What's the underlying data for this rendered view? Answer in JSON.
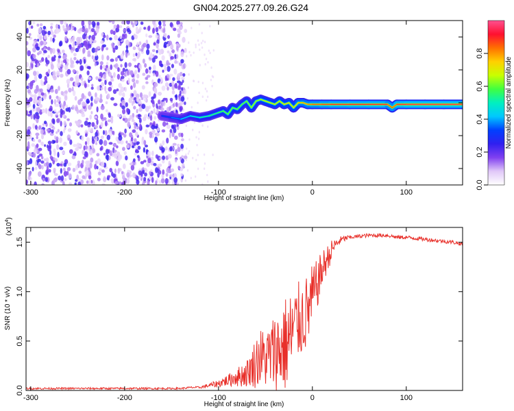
{
  "title": "GN04.2025.277.09.26.G24",
  "chart_data": [
    {
      "type": "heatmap",
      "xlabel": "Height of straight line (km)",
      "ylabel": "Frequency (Hz)",
      "xlim": [
        -305,
        160
      ],
      "ylim": [
        -50,
        50
      ],
      "xticks": [
        -300,
        -200,
        -100,
        0,
        100
      ],
      "yticks": [
        -40,
        -20,
        0,
        20,
        40
      ],
      "colorbar": {
        "label": "Normalized spectral amplitude",
        "range": [
          0,
          1
        ],
        "ticks": [
          0.0,
          0.2,
          0.4,
          0.6,
          0.8
        ],
        "colors": [
          "#ffffff",
          "#e0c8f8",
          "#8040f0",
          "#3020f0",
          "#0040ff",
          "#00c8ff",
          "#00f0c0",
          "#40ff40",
          "#c8ff00",
          "#ffd000",
          "#ff7000",
          "#ff1030",
          "#ff5090"
        ]
      },
      "ridge": {
        "x": [
          -160,
          -150,
          -140,
          -130,
          -120,
          -110,
          -100,
          -95,
          -90,
          -85,
          -80,
          -75,
          -70,
          -65,
          -60,
          -55,
          -50,
          -45,
          -40,
          -35,
          -30,
          -25,
          -20,
          -15,
          -10,
          -5,
          0,
          10,
          20,
          40,
          60,
          80,
          85,
          90,
          100,
          120,
          140,
          160
        ],
        "freq": [
          -8,
          -9,
          -10,
          -8,
          -9,
          -8,
          -6,
          -5,
          -7,
          -3,
          -4,
          -1,
          1,
          -3,
          1,
          2,
          1,
          0,
          -1,
          1,
          -1,
          0,
          -3,
          0,
          0,
          -1,
          -1,
          -1,
          -1,
          -1,
          -1,
          -1,
          -3,
          -1,
          -1,
          -1,
          -1,
          -1
        ],
        "amplitude": [
          0.3,
          0.35,
          0.4,
          0.45,
          0.5,
          0.55,
          0.55,
          0.6,
          0.6,
          0.62,
          0.6,
          0.62,
          0.6,
          0.65,
          0.65,
          0.65,
          0.7,
          0.7,
          0.7,
          0.72,
          0.72,
          0.75,
          0.7,
          0.78,
          0.8,
          0.82,
          0.85,
          0.88,
          0.9,
          0.92,
          0.92,
          0.93,
          0.8,
          0.92,
          0.95,
          0.95,
          0.95,
          0.95
        ]
      },
      "noise_region_x": [
        -305,
        -135
      ],
      "colorbar_ticks_fmt": 1
    },
    {
      "type": "line",
      "xlabel": "Height of straight line (km)",
      "ylabel": "SNR (10 * v/v)",
      "scale_label": "(x10",
      "scale_exp": "4",
      "scale_close": ")",
      "xlim": [
        -305,
        160
      ],
      "ylim": [
        0,
        1.65
      ],
      "xticks": [
        -300,
        -200,
        -100,
        0,
        100
      ],
      "yticks": [
        0.0,
        0.5,
        1.0,
        1.5
      ],
      "series": [
        {
          "color": "#e8302a",
          "x": [
            -305,
            -280,
            -250,
            -220,
            -200,
            -180,
            -160,
            -140,
            -130,
            -120,
            -115,
            -110,
            -105,
            -100,
            -95,
            -90,
            -85,
            -80,
            -75,
            -70,
            -65,
            -60,
            -55,
            -50,
            -45,
            -40,
            -35,
            -30,
            -25,
            -20,
            -15,
            -10,
            -5,
            0,
            5,
            10,
            15,
            20,
            25,
            30,
            35,
            40,
            50,
            60,
            70,
            80,
            90,
            100,
            110,
            120,
            130,
            140,
            150,
            160
          ],
          "y": [
            0.02,
            0.02,
            0.02,
            0.02,
            0.02,
            0.02,
            0.02,
            0.02,
            0.03,
            0.03,
            0.04,
            0.05,
            0.06,
            0.07,
            0.09,
            0.1,
            0.12,
            0.15,
            0.18,
            0.2,
            0.26,
            0.35,
            0.4,
            0.38,
            0.42,
            0.48,
            0.5,
            0.56,
            0.6,
            0.7,
            0.78,
            0.82,
            0.88,
            1.0,
            1.12,
            1.25,
            1.35,
            1.42,
            1.48,
            1.52,
            1.54,
            1.55,
            1.56,
            1.57,
            1.57,
            1.57,
            1.55,
            1.55,
            1.54,
            1.53,
            1.52,
            1.51,
            1.5,
            1.48
          ],
          "noise_amp": [
            0.01,
            0.01,
            0.01,
            0.01,
            0.01,
            0.01,
            0.01,
            0.01,
            0.01,
            0.01,
            0.02,
            0.02,
            0.03,
            0.04,
            0.05,
            0.06,
            0.08,
            0.1,
            0.12,
            0.14,
            0.18,
            0.28,
            0.3,
            0.3,
            0.35,
            0.4,
            0.45,
            0.5,
            0.5,
            0.45,
            0.4,
            0.4,
            0.38,
            0.35,
            0.25,
            0.2,
            0.15,
            0.1,
            0.06,
            0.04,
            0.03,
            0.02,
            0.02,
            0.02,
            0.02,
            0.02,
            0.02,
            0.02,
            0.02,
            0.02,
            0.02,
            0.02,
            0.02,
            0.02
          ]
        }
      ]
    }
  ]
}
